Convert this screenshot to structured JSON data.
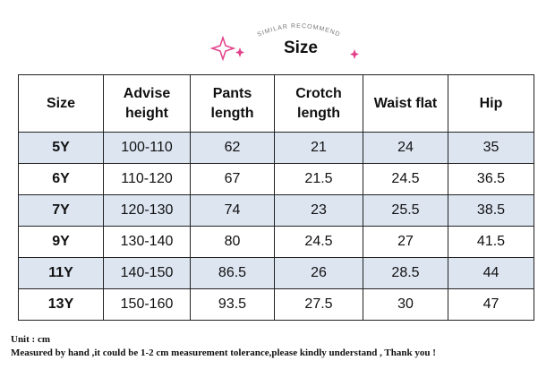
{
  "header": {
    "subtitle": "SIMILAR RECOMMEND",
    "title": "Size"
  },
  "table": {
    "columns": [
      "Size",
      "Advise height",
      "Pants length",
      "Crotch length",
      "Waist flat",
      "Hip"
    ],
    "rows": [
      [
        "5Y",
        "100-110",
        "62",
        "21",
        "24",
        "35"
      ],
      [
        "6Y",
        "110-120",
        "67",
        "21.5",
        "24.5",
        "36.5"
      ],
      [
        "7Y",
        "120-130",
        "74",
        "23",
        "25.5",
        "38.5"
      ],
      [
        "9Y",
        "130-140",
        "80",
        "24.5",
        "27",
        "41.5"
      ],
      [
        "11Y",
        "140-150",
        "86.5",
        "26",
        "28.5",
        "44"
      ],
      [
        "13Y",
        "150-160",
        "93.5",
        "27.5",
        "30",
        "47"
      ]
    ]
  },
  "footer": {
    "unit": "Unit : cm",
    "note": "Measured by hand ,it could be 1-2 cm measurement tolerance,please kindly understand , Thank you !"
  }
}
